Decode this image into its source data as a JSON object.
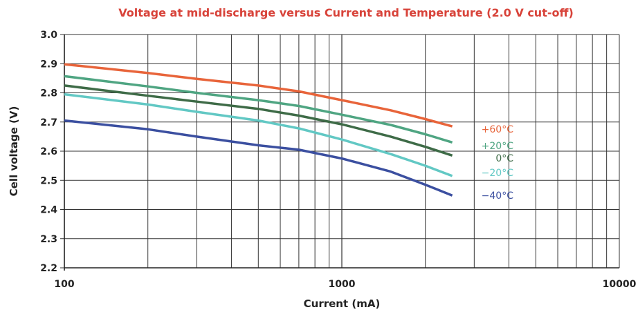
{
  "chart_data": {
    "type": "line",
    "title": "Voltage at mid-discharge versus Current and Temperature (2.0 V cut-off)",
    "xlabel": "Current (mA)",
    "ylabel": "Cell voltage (V)",
    "xscale": "log",
    "xlim": [
      100,
      10000
    ],
    "ylim": [
      2.2,
      3.0
    ],
    "grid": true,
    "x_ticks": [
      "100",
      "1000",
      "10000"
    ],
    "y_ticks": [
      "3.0",
      "2.9",
      "2.8",
      "2.7",
      "2.6",
      "2.5",
      "2.4",
      "2.3",
      "2.2"
    ],
    "x_tick_values": [
      100,
      1000,
      10000
    ],
    "y_tick_values": [
      3.0,
      2.9,
      2.8,
      2.7,
      2.6,
      2.5,
      2.4,
      2.3,
      2.2
    ],
    "series": [
      {
        "name": "+60°C",
        "color": "#e8643a",
        "x": [
          100,
          200,
          300,
          500,
          700,
          1000,
          1500,
          2000,
          2500
        ],
        "values": [
          2.898,
          2.868,
          2.848,
          2.825,
          2.805,
          2.775,
          2.74,
          2.71,
          2.685
        ]
      },
      {
        "name": "+20°C",
        "color": "#4fa582",
        "x": [
          100,
          200,
          300,
          500,
          700,
          1000,
          1500,
          2000,
          2500
        ],
        "values": [
          2.857,
          2.822,
          2.8,
          2.775,
          2.755,
          2.725,
          2.69,
          2.658,
          2.63
        ]
      },
      {
        "name": "0°C",
        "color": "#3e6b47",
        "x": [
          100,
          200,
          300,
          500,
          700,
          1000,
          1500,
          2000,
          2500
        ],
        "values": [
          2.825,
          2.79,
          2.77,
          2.745,
          2.722,
          2.692,
          2.65,
          2.615,
          2.585
        ]
      },
      {
        "name": "−20°C",
        "color": "#62c8c4",
        "x": [
          100,
          200,
          300,
          500,
          700,
          1000,
          1500,
          2000,
          2500
        ],
        "values": [
          2.795,
          2.76,
          2.735,
          2.705,
          2.678,
          2.64,
          2.59,
          2.55,
          2.515
        ]
      },
      {
        "name": "−40°C",
        "color": "#3b4fa0",
        "x": [
          100,
          200,
          300,
          500,
          700,
          1000,
          1500,
          2000,
          2500
        ],
        "values": [
          2.705,
          2.675,
          2.65,
          2.62,
          2.605,
          2.575,
          2.53,
          2.485,
          2.448
        ]
      }
    ]
  }
}
